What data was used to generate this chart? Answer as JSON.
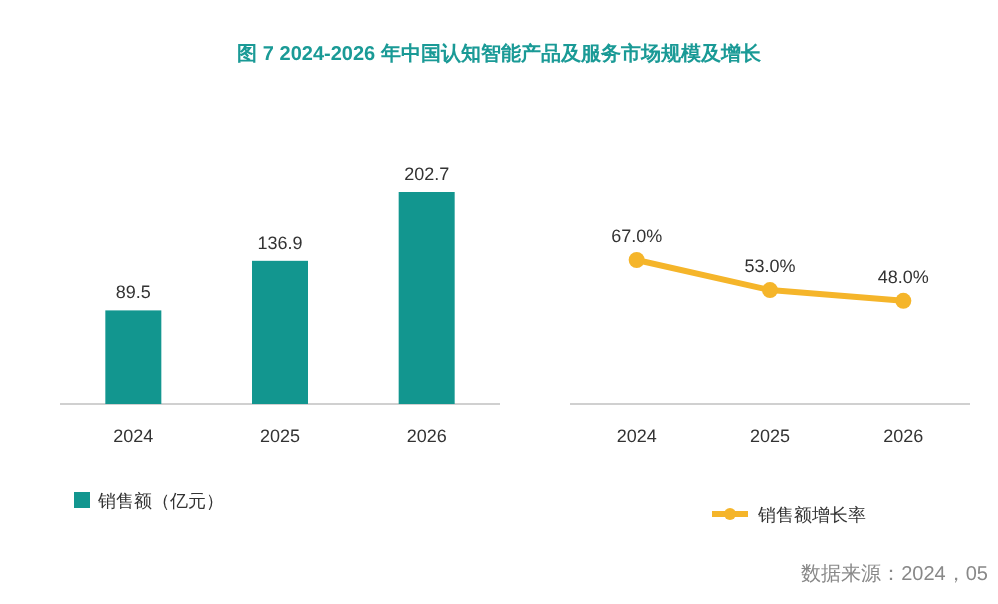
{
  "chart_data": [
    {
      "type": "bar",
      "title": "图 7   2024-2026 年中国认知智能产品及服务市场规模及增长",
      "categories": [
        "2024",
        "2025",
        "2026"
      ],
      "series": [
        {
          "name": "销售额（亿元）",
          "color": "#12968f",
          "values": [
            89.5,
            136.9,
            202.7
          ]
        }
      ],
      "data_labels": true,
      "legend": "bottom"
    },
    {
      "type": "line",
      "categories": [
        "2024",
        "2025",
        "2026"
      ],
      "series": [
        {
          "name": "销售额增长率",
          "color": "#f5b52a",
          "values": [
            67.0,
            53.0,
            48.0
          ],
          "value_labels": [
            "67.0%",
            "53.0%",
            "48.0%"
          ]
        }
      ],
      "marker": "circle",
      "legend": "bottom",
      "annotations": [
        "数据来源：2024，05"
      ]
    }
  ]
}
